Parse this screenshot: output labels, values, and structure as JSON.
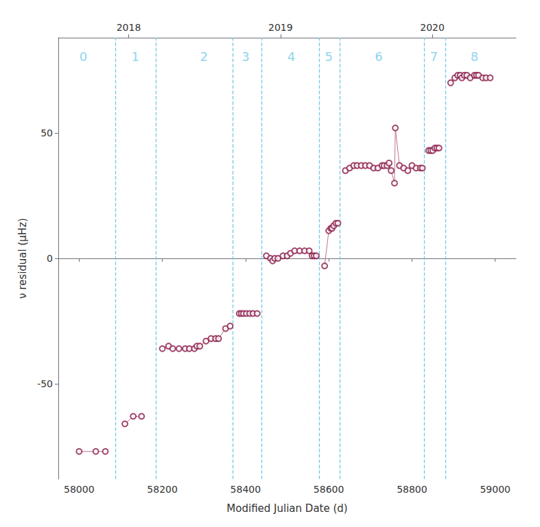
{
  "chart_data": {
    "type": "line",
    "xlabel": "Modified Julian Date (d)",
    "ylabel": "ν residual (μHz)",
    "x": [
      58000,
      58040,
      58063,
      58110,
      58130,
      58150,
      58200,
      58215,
      58225,
      58240,
      58255,
      58265,
      58277,
      58283,
      58290,
      58305,
      58317,
      58328,
      58335,
      58352,
      58363,
      58385,
      58390,
      58395,
      58402,
      58410,
      58418,
      58428,
      58450,
      58460,
      58465,
      58470,
      58478,
      58490,
      58500,
      58508,
      58518,
      58530,
      58542,
      58553,
      58560,
      58565,
      58570,
      58590,
      58600,
      58605,
      58608,
      58612,
      58617,
      58622,
      58640,
      58650,
      58660,
      58668,
      58678,
      58688,
      58698,
      58708,
      58718,
      58728,
      58733,
      58740,
      58745,
      58750,
      58758,
      58760,
      58770,
      58780,
      58790,
      58800,
      58810,
      58820,
      58825,
      58840,
      58845,
      58850,
      58855,
      58860,
      58865,
      58893,
      58903,
      58910,
      58916,
      58920,
      58926,
      58932,
      58940,
      58950,
      58955,
      58960,
      58970,
      58978,
      58988
    ],
    "values": [
      -77,
      -77,
      -77,
      -66,
      -63,
      -63,
      -36,
      -35,
      -36,
      -36,
      -36,
      -36,
      -36,
      -35,
      -35,
      -33,
      -32,
      -32,
      -32,
      -28,
      -27,
      -22,
      -22,
      -22,
      -22,
      -22,
      -22,
      -22,
      1,
      0,
      -1,
      0,
      0,
      1,
      1,
      2,
      3,
      3,
      3,
      3,
      1,
      1,
      1,
      -3,
      11,
      12,
      12,
      13,
      14,
      14,
      35,
      36,
      37,
      37,
      37,
      37,
      37,
      36,
      36,
      37,
      37,
      37,
      38,
      35,
      30,
      52,
      37,
      36,
      35,
      37,
      36,
      36,
      36,
      43,
      43,
      43,
      44,
      44,
      44,
      70,
      72,
      73,
      73,
      72,
      73,
      73,
      72,
      73,
      73,
      73,
      72,
      72,
      72
    ],
    "color": "#8B1A4A",
    "line_color": "#C07090",
    "marker": "circle",
    "xlim": [
      57950,
      59050
    ],
    "xticks": [
      58000,
      58200,
      58400,
      58600,
      58800,
      59000
    ],
    "ylim": [
      -88,
      88
    ],
    "yticks": [
      -50,
      0,
      50
    ],
    "x2lim": [
      57950,
      59050
    ],
    "x2ticks": [
      {
        "value": 58119,
        "label": "2018"
      },
      {
        "value": 58484,
        "label": "2019"
      },
      {
        "value": 58849,
        "label": "2020"
      }
    ],
    "vlines": [
      58087,
      58185,
      58369,
      58439,
      58577,
      58627,
      58830,
      58880
    ],
    "vline_color": "#70C8EA",
    "annotations": [
      {
        "text": "0",
        "x": 58010,
        "y": 83
      },
      {
        "text": "1",
        "x": 58135,
        "y": 83
      },
      {
        "text": "2",
        "x": 58300,
        "y": 83
      },
      {
        "text": "3",
        "x": 58400,
        "y": 83
      },
      {
        "text": "4",
        "x": 58510,
        "y": 83
      },
      {
        "text": "5",
        "x": 58600,
        "y": 83
      },
      {
        "text": "6",
        "x": 58720,
        "y": 83
      },
      {
        "text": "7",
        "x": 58853,
        "y": 83
      },
      {
        "text": "8",
        "x": 58950,
        "y": 83
      }
    ],
    "annotation_color": "#70C8EA",
    "grid": false
  }
}
